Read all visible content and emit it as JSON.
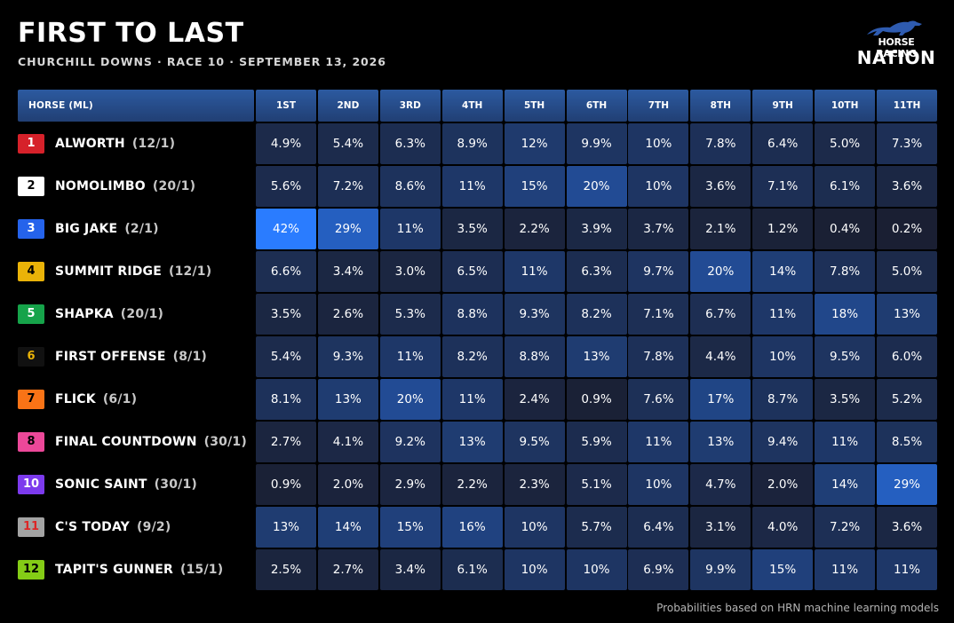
{
  "header": {
    "title": "FIRST TO LAST",
    "subtitle": "CHURCHILL DOWNS · RACE 10 · SEPTEMBER 13, 2026"
  },
  "logo": {
    "line1": "HORSE RACING",
    "line2": "NATION",
    "icon": "horse-racing-icon"
  },
  "colors": {
    "background": "#000000",
    "header_blue": "#2c5aa0",
    "cell_low": "#1a1f32",
    "cell_high": "#2a7cff"
  },
  "chart_data": {
    "type": "heatmap",
    "title": "FIRST TO LAST",
    "subtitle": "CHURCHILL DOWNS · RACE 10 · SEPTEMBER 13, 2026",
    "row_header": "HORSE (ML)",
    "columns": [
      "1ST",
      "2ND",
      "3RD",
      "4TH",
      "5TH",
      "6TH",
      "7TH",
      "8TH",
      "9TH",
      "10TH",
      "11TH"
    ],
    "rows": [
      {
        "pp": "1",
        "name": "ALWORTH",
        "ml": "(12/1)",
        "pp_bg": "#d6212a",
        "pp_fg": "#ffffff",
        "values": [
          4.9,
          5.4,
          6.3,
          8.9,
          12,
          9.9,
          10,
          7.8,
          6.4,
          5.0,
          7.3
        ],
        "labels": [
          "4.9%",
          "5.4%",
          "6.3%",
          "8.9%",
          "12%",
          "9.9%",
          "10%",
          "7.8%",
          "6.4%",
          "5.0%",
          "7.3%"
        ]
      },
      {
        "pp": "2",
        "name": "NOMOLIMBO",
        "ml": "(20/1)",
        "pp_bg": "#ffffff",
        "pp_fg": "#000000",
        "values": [
          5.6,
          7.2,
          8.6,
          11,
          15,
          20,
          10,
          3.6,
          7.1,
          6.1,
          3.6
        ],
        "labels": [
          "5.6%",
          "7.2%",
          "8.6%",
          "11%",
          "15%",
          "20%",
          "10%",
          "3.6%",
          "7.1%",
          "6.1%",
          "3.6%"
        ]
      },
      {
        "pp": "3",
        "name": "BIG JAKE",
        "ml": "(2/1)",
        "pp_bg": "#2563eb",
        "pp_fg": "#ffffff",
        "values": [
          42,
          29,
          11,
          3.5,
          2.2,
          3.9,
          3.7,
          2.1,
          1.2,
          0.4,
          0.2
        ],
        "labels": [
          "42%",
          "29%",
          "11%",
          "3.5%",
          "2.2%",
          "3.9%",
          "3.7%",
          "2.1%",
          "1.2%",
          "0.4%",
          "0.2%"
        ]
      },
      {
        "pp": "4",
        "name": "SUMMIT RIDGE",
        "ml": "(12/1)",
        "pp_bg": "#eab308",
        "pp_fg": "#000000",
        "values": [
          6.6,
          3.4,
          3.0,
          6.5,
          11,
          6.3,
          9.7,
          20,
          14,
          7.8,
          5.0
        ],
        "labels": [
          "6.6%",
          "3.4%",
          "3.0%",
          "6.5%",
          "11%",
          "6.3%",
          "9.7%",
          "20%",
          "14%",
          "7.8%",
          "5.0%"
        ]
      },
      {
        "pp": "5",
        "name": "SHAPKA",
        "ml": "(20/1)",
        "pp_bg": "#16a34a",
        "pp_fg": "#ffffff",
        "values": [
          3.5,
          2.6,
          5.3,
          8.8,
          9.3,
          8.2,
          7.1,
          6.7,
          11,
          18,
          13
        ],
        "labels": [
          "3.5%",
          "2.6%",
          "5.3%",
          "8.8%",
          "9.3%",
          "8.2%",
          "7.1%",
          "6.7%",
          "11%",
          "18%",
          "13%"
        ]
      },
      {
        "pp": "6",
        "name": "FIRST OFFENSE",
        "ml": "(8/1)",
        "pp_bg": "#111111",
        "pp_fg": "#eab308",
        "values": [
          5.4,
          9.3,
          11,
          8.2,
          8.8,
          13,
          7.8,
          4.4,
          10,
          9.5,
          6.0
        ],
        "labels": [
          "5.4%",
          "9.3%",
          "11%",
          "8.2%",
          "8.8%",
          "13%",
          "7.8%",
          "4.4%",
          "10%",
          "9.5%",
          "6.0%"
        ]
      },
      {
        "pp": "7",
        "name": "FLICK",
        "ml": "(6/1)",
        "pp_bg": "#f97316",
        "pp_fg": "#000000",
        "values": [
          8.1,
          13,
          20,
          11,
          2.4,
          0.9,
          7.6,
          17,
          8.7,
          3.5,
          5.2
        ],
        "labels": [
          "8.1%",
          "13%",
          "20%",
          "11%",
          "2.4%",
          "0.9%",
          "7.6%",
          "17%",
          "8.7%",
          "3.5%",
          "5.2%"
        ]
      },
      {
        "pp": "8",
        "name": "FINAL COUNTDOWN",
        "ml": "(30/1)",
        "pp_bg": "#ec4899",
        "pp_fg": "#000000",
        "values": [
          2.7,
          4.1,
          9.2,
          13,
          9.5,
          5.9,
          11,
          13,
          9.4,
          11,
          8.5
        ],
        "labels": [
          "2.7%",
          "4.1%",
          "9.2%",
          "13%",
          "9.5%",
          "5.9%",
          "11%",
          "13%",
          "9.4%",
          "11%",
          "8.5%"
        ]
      },
      {
        "pp": "10",
        "name": "SONIC SAINT",
        "ml": "(30/1)",
        "pp_bg": "#7c3aed",
        "pp_fg": "#ffffff",
        "values": [
          0.9,
          2.0,
          2.9,
          2.2,
          2.3,
          5.1,
          10,
          4.7,
          2.0,
          14,
          29
        ],
        "labels": [
          "0.9%",
          "2.0%",
          "2.9%",
          "2.2%",
          "2.3%",
          "5.1%",
          "10%",
          "4.7%",
          "2.0%",
          "14%",
          "29%"
        ]
      },
      {
        "pp": "11",
        "name": "C'S TODAY",
        "ml": "(9/2)",
        "pp_bg": "#a3a3a3",
        "pp_fg": "#dc2626",
        "values": [
          13,
          14,
          15,
          16,
          10,
          5.7,
          6.4,
          3.1,
          4.0,
          7.2,
          3.6
        ],
        "labels": [
          "13%",
          "14%",
          "15%",
          "16%",
          "10%",
          "5.7%",
          "6.4%",
          "3.1%",
          "4.0%",
          "7.2%",
          "3.6%"
        ]
      },
      {
        "pp": "12",
        "name": "TAPIT'S GUNNER",
        "ml": "(15/1)",
        "pp_bg": "#84cc16",
        "pp_fg": "#000000",
        "values": [
          2.5,
          2.7,
          3.4,
          6.1,
          10,
          10,
          6.9,
          9.9,
          15,
          11,
          11
        ],
        "labels": [
          "2.5%",
          "2.7%",
          "3.4%",
          "6.1%",
          "10%",
          "10%",
          "6.9%",
          "9.9%",
          "15%",
          "11%",
          "11%"
        ]
      }
    ],
    "color_scale": {
      "min": 0,
      "max": 42,
      "low": "#1a1f32",
      "high": "#2a7cff"
    }
  },
  "footnote": "Probabilities based on HRN machine learning models"
}
